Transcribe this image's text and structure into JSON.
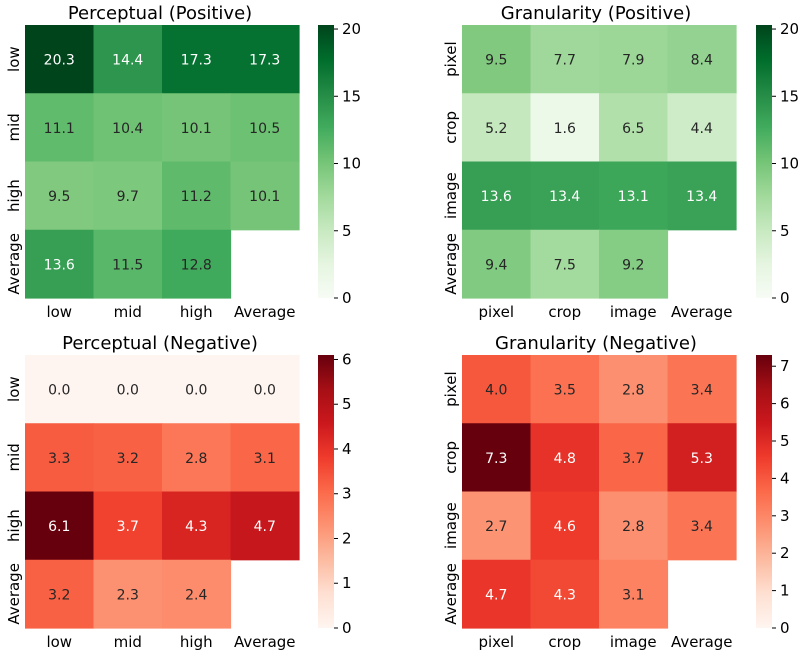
{
  "chart_data": [
    {
      "type": "heatmap",
      "title": "Perceptual (Positive)",
      "colormap": "Greens",
      "rows": [
        "low",
        "mid",
        "high",
        "Average"
      ],
      "columns": [
        "low",
        "mid",
        "high",
        "Average"
      ],
      "values": [
        [
          20.3,
          14.4,
          17.3,
          17.3
        ],
        [
          11.1,
          10.4,
          10.1,
          10.5
        ],
        [
          9.5,
          9.7,
          11.2,
          10.1
        ],
        [
          13.6,
          11.5,
          12.8,
          null
        ]
      ],
      "labels": [
        [
          "20.3",
          "14.4",
          "17.3",
          "17.3"
        ],
        [
          "11.1",
          "10.4",
          "10.1",
          "10.5"
        ],
        [
          "9.5",
          "9.7",
          "11.2",
          "10.1"
        ],
        [
          "13.6",
          "11.5",
          "12.8",
          ""
        ]
      ],
      "vmin": 0,
      "vmax": 20.3,
      "colorbar_ticks": [
        0,
        5,
        10,
        15,
        20
      ],
      "colorbar_tick_labels": [
        "0",
        "5",
        "10",
        "15",
        "20"
      ]
    },
    {
      "type": "heatmap",
      "title": "Granularity (Positive)",
      "colormap": "Greens",
      "rows": [
        "pixel",
        "crop",
        "image",
        "Average"
      ],
      "columns": [
        "pixel",
        "crop",
        "image",
        "Average"
      ],
      "values": [
        [
          9.5,
          7.7,
          7.9,
          8.4
        ],
        [
          5.2,
          1.6,
          6.5,
          4.4
        ],
        [
          13.6,
          13.4,
          13.1,
          13.4
        ],
        [
          9.4,
          7.5,
          9.2,
          null
        ]
      ],
      "labels": [
        [
          "9.5",
          "7.7",
          "7.9",
          "8.4"
        ],
        [
          "5.2",
          "1.6",
          "6.5",
          "4.4"
        ],
        [
          "13.6",
          "13.4",
          "13.1",
          "13.4"
        ],
        [
          "9.4",
          "7.5",
          "9.2",
          ""
        ]
      ],
      "vmin": 0,
      "vmax": 20.3,
      "colorbar_ticks": [
        0,
        5,
        10,
        15,
        20
      ],
      "colorbar_tick_labels": [
        "0",
        "5",
        "10",
        "15",
        "20"
      ]
    },
    {
      "type": "heatmap",
      "title": "Perceptual (Negative)",
      "colormap": "Reds",
      "rows": [
        "low",
        "mid",
        "high",
        "Average"
      ],
      "columns": [
        "low",
        "mid",
        "high",
        "Average"
      ],
      "values": [
        [
          0.0,
          0.0,
          0.0,
          0.0
        ],
        [
          3.3,
          3.2,
          2.8,
          3.1
        ],
        [
          6.1,
          3.7,
          4.3,
          4.7
        ],
        [
          3.2,
          2.3,
          2.4,
          null
        ]
      ],
      "labels": [
        [
          "0.0",
          "0.0",
          "0.0",
          "0.0"
        ],
        [
          "3.3",
          "3.2",
          "2.8",
          "3.1"
        ],
        [
          "6.1",
          "3.7",
          "4.3",
          "4.7"
        ],
        [
          "3.2",
          "2.3",
          "2.4",
          ""
        ]
      ],
      "vmin": 0,
      "vmax": 6.1,
      "colorbar_ticks": [
        0,
        1,
        2,
        3,
        4,
        5,
        6
      ],
      "colorbar_tick_labels": [
        "0",
        "1",
        "2",
        "3",
        "4",
        "5",
        "6"
      ]
    },
    {
      "type": "heatmap",
      "title": "Granularity (Negative)",
      "colormap": "Reds",
      "rows": [
        "pixel",
        "crop",
        "image",
        "Average"
      ],
      "columns": [
        "pixel",
        "crop",
        "image",
        "Average"
      ],
      "values": [
        [
          4.0,
          3.5,
          2.8,
          3.4
        ],
        [
          7.3,
          4.8,
          3.7,
          5.3
        ],
        [
          2.7,
          4.6,
          2.8,
          3.4
        ],
        [
          4.7,
          4.3,
          3.1,
          null
        ]
      ],
      "labels": [
        [
          "4.0",
          "3.5",
          "2.8",
          "3.4"
        ],
        [
          "7.3",
          "4.8",
          "3.7",
          "5.3"
        ],
        [
          "2.7",
          "4.6",
          "2.8",
          "3.4"
        ],
        [
          "4.7",
          "4.3",
          "3.1",
          ""
        ]
      ],
      "vmin": 0,
      "vmax": 7.3,
      "colorbar_ticks": [
        0,
        1,
        2,
        3,
        4,
        5,
        6,
        7
      ],
      "colorbar_tick_labels": [
        "0",
        "1",
        "2",
        "3",
        "4",
        "5",
        "6",
        "7"
      ]
    }
  ]
}
